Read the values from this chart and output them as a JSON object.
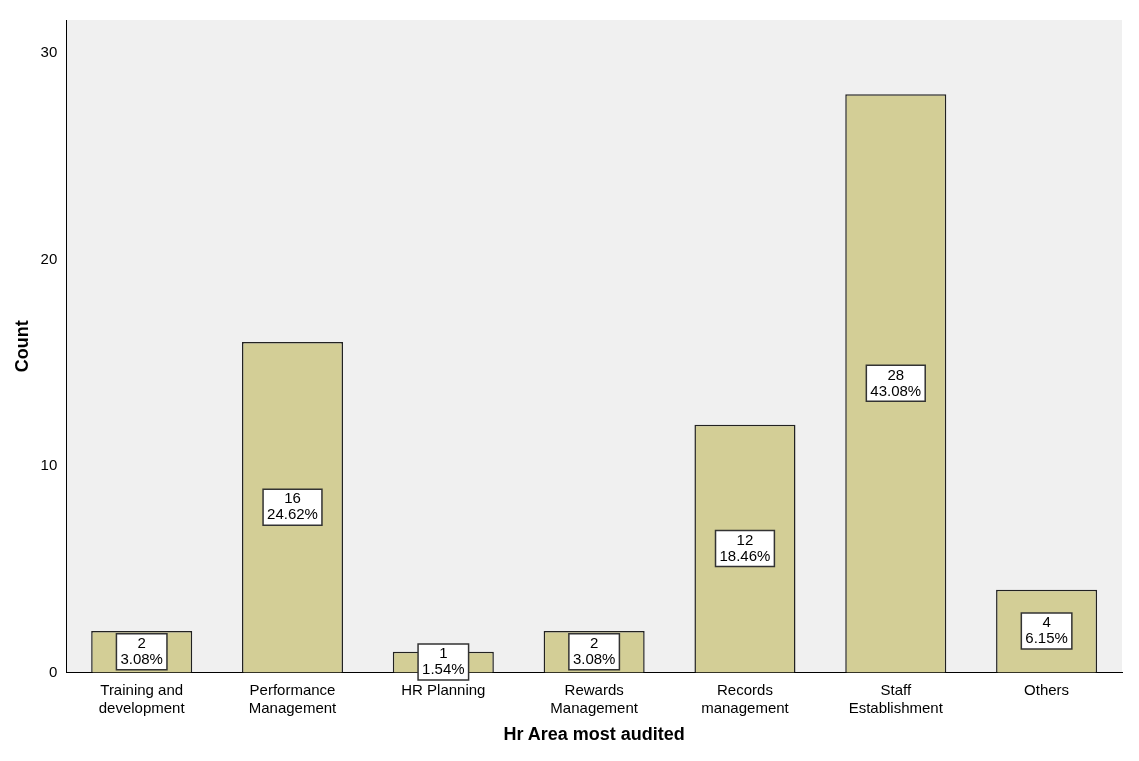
{
  "chart_data": {
    "type": "bar",
    "xlabel": "Hr Area most audited",
    "ylabel": "Count",
    "categories": [
      "Training and development",
      "Performance Management",
      "HR Planning",
      "Rewards Management",
      "Records management",
      "Staff Establishment",
      "Others"
    ],
    "values": [
      2,
      16,
      1,
      2,
      12,
      28,
      4
    ],
    "color": "#d3ce96",
    "value_labels": [
      "2\n3.08%",
      "16\n24.62%",
      "1\n1.54%",
      "2\n3.08%",
      "12\n18.46%",
      "28\n43.08%",
      "4\n6.15%"
    ],
    "ylim": [
      0,
      31.6
    ],
    "yticks": [
      0,
      10,
      20,
      30
    ],
    "grid": false,
    "legend": false
  }
}
